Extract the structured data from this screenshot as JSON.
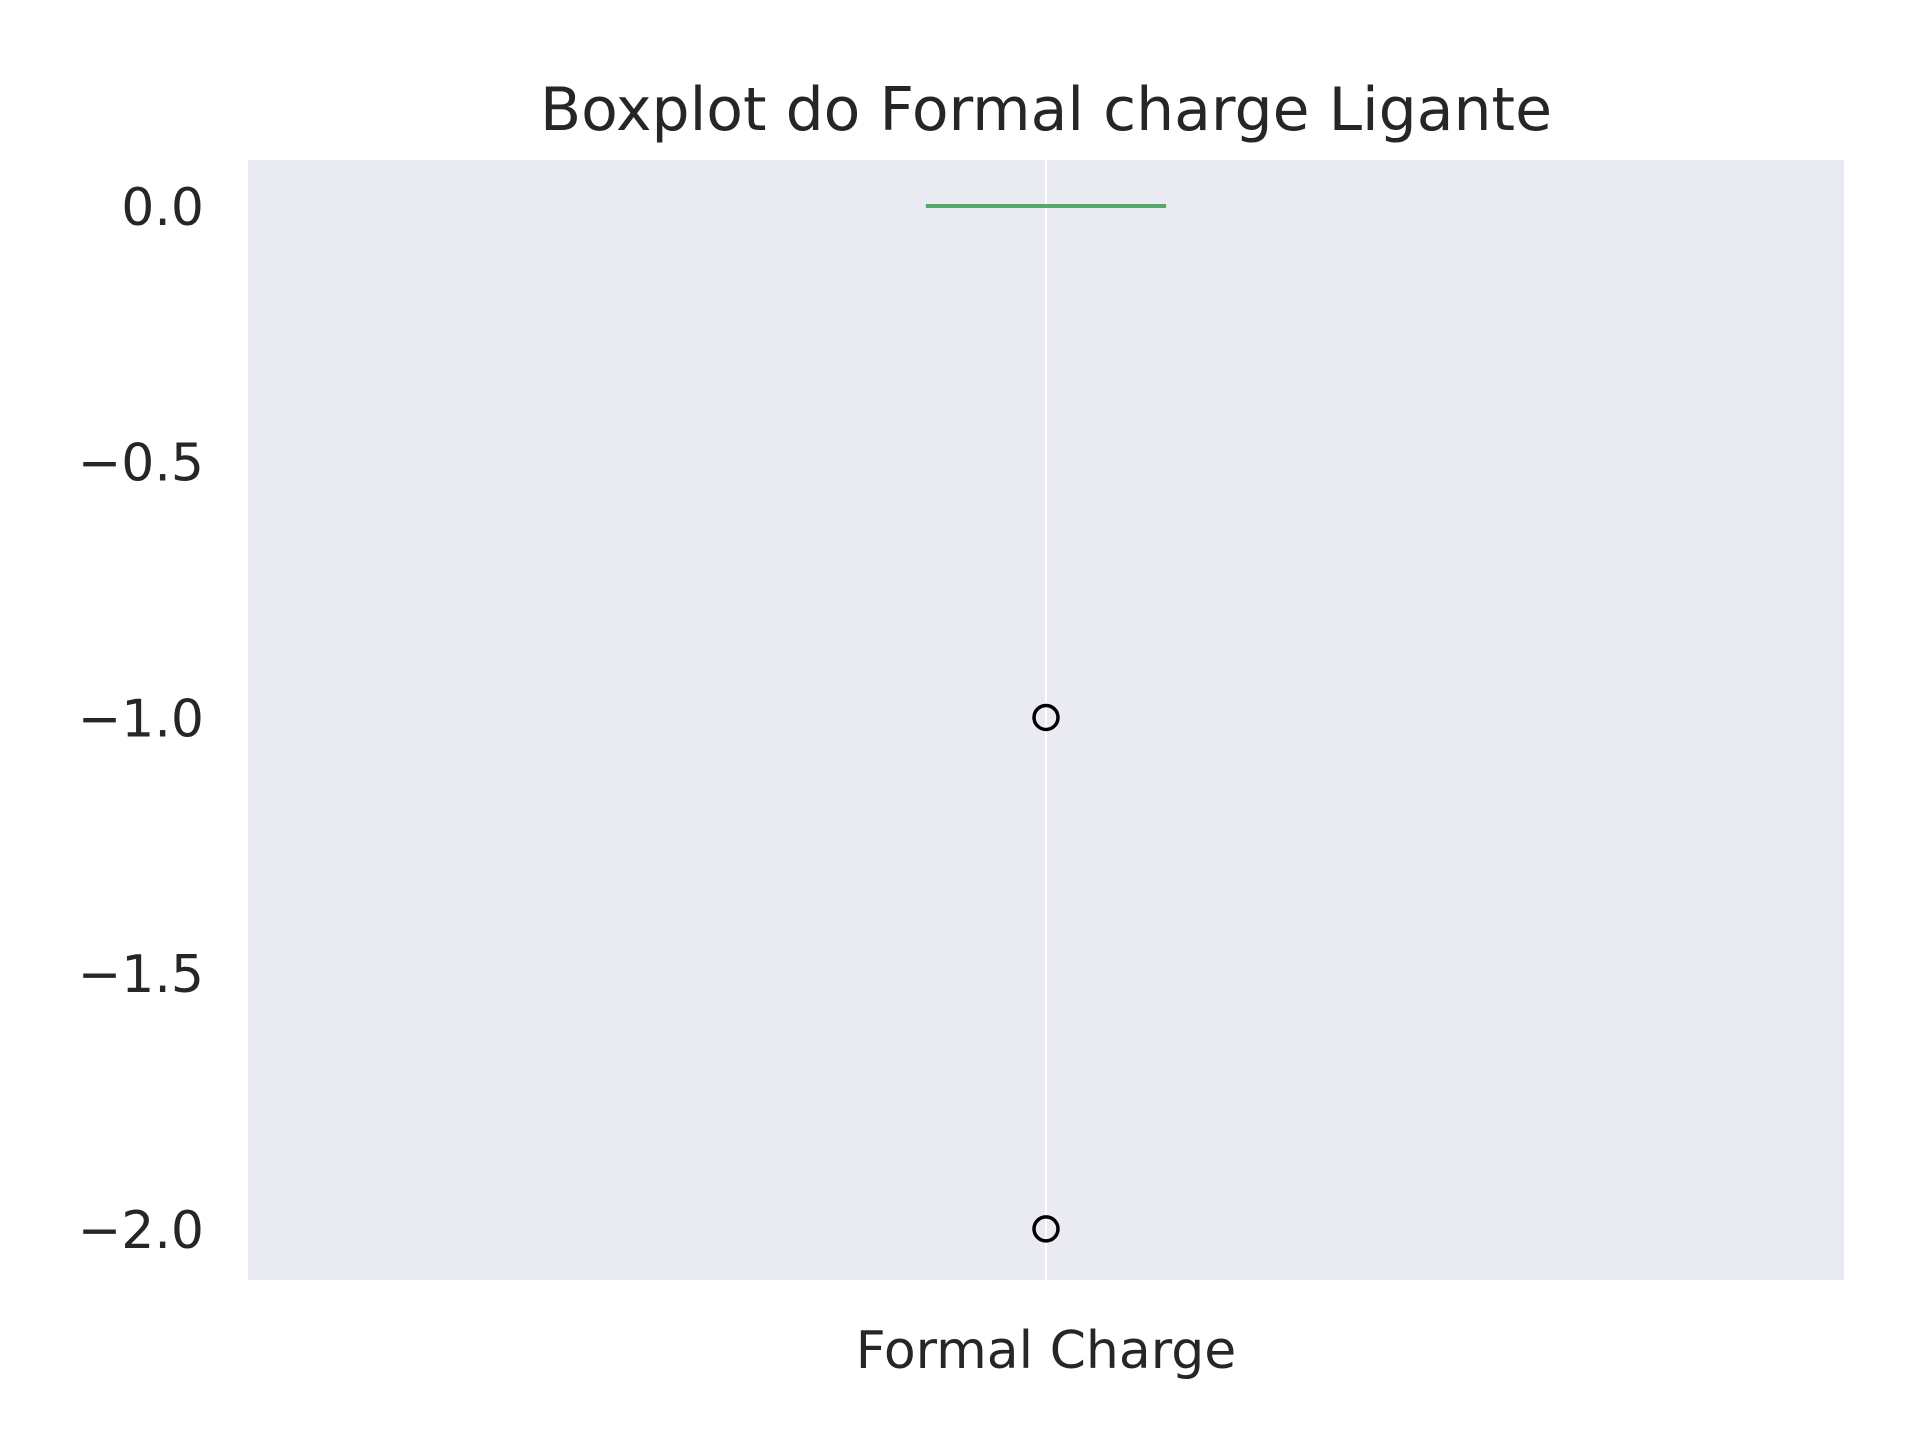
{
  "chart_data": {
    "type": "box",
    "title": "Boxplot do Formal charge Ligante",
    "xlabel": "",
    "ylabel": "",
    "categories": [
      "Formal Charge"
    ],
    "ylim": [
      -2.1,
      0.09
    ],
    "yticks": [
      0.0,
      -0.5,
      -1.0,
      -1.5,
      -2.0
    ],
    "ytick_labels": [
      "0.0",
      "−0.5",
      "−1.0",
      "−1.5",
      "−2.0"
    ],
    "boxes": [
      {
        "category": "Formal Charge",
        "q1": 0.0,
        "median": 0.0,
        "q3": 0.0,
        "whisker_low": 0.0,
        "whisker_high": 0.0,
        "outliers": [
          -1.0,
          -2.0
        ]
      }
    ],
    "grid": true,
    "colors": {
      "plot_background": "#eaeaf2",
      "grid": "#ffffff",
      "median": "#55a868",
      "outlier_edge": "#000000",
      "text": "#262626"
    }
  }
}
